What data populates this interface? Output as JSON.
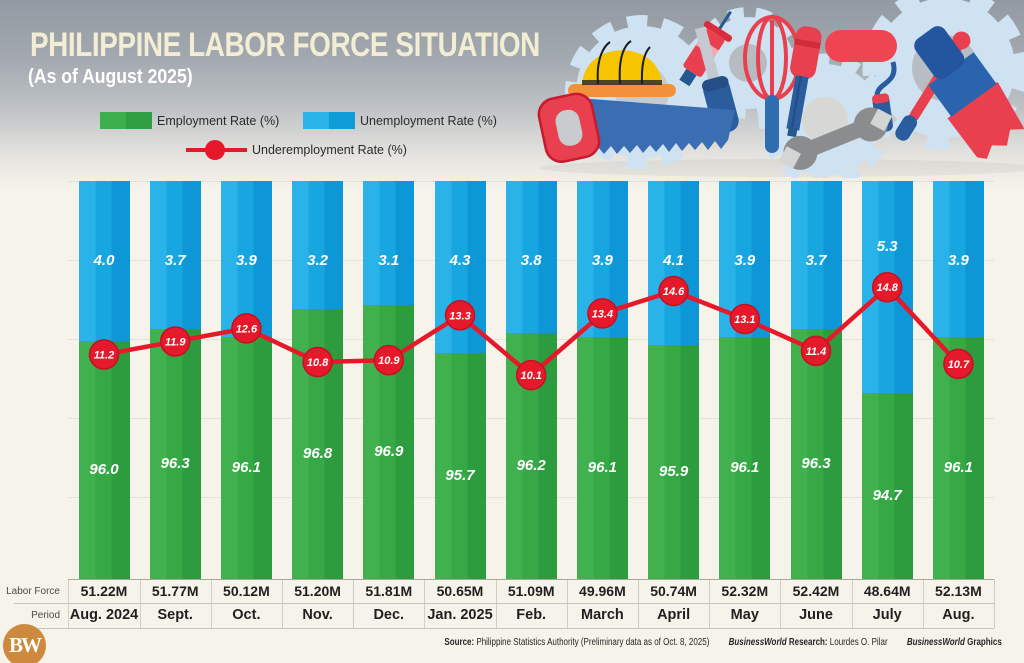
{
  "header": {
    "title": "PHILIPPINE LABOR FORCE SITUATION",
    "subtitle": "(As of August 2025)"
  },
  "legend": {
    "employment": "Employment Rate (%)",
    "unemployment": "Unemployment Rate (%)",
    "underemployment": "Underemployment Rate (%)"
  },
  "table": {
    "labor_force_label": "Labor Force",
    "period_label": "Period"
  },
  "footer": {
    "source_label": "Source:",
    "source_text": " Philippine Statistics Authority (Preliminary data as of Oct. 8, 2025)",
    "research_brand": "BusinessWorld",
    "research_label": " Research:",
    "research_text": " Lourdes O. Pilar",
    "graphics_brand": "BusinessWorld",
    "graphics_label": " Graphics"
  },
  "logo_text": "BW",
  "colors": {
    "employment_green": "#36a846",
    "unemployment_blue": "#18a6e1",
    "underemployment_red": "#e6192b",
    "background_cream": "#f5f3ea",
    "title_cream": "#f2edd3",
    "logo_orange": "#cd8a3e",
    "gridline": "#e4e2d6"
  },
  "chart_data": {
    "type": "bar",
    "stacked": true,
    "grid": "horizontal",
    "legend_position": "top",
    "ylim": [
      0,
      100
    ],
    "categories": [
      "Aug. 2024",
      "Sept.",
      "Oct.",
      "Nov.",
      "Dec.",
      "Jan. 2025",
      "Feb.",
      "March",
      "April",
      "May",
      "June",
      "July",
      "Aug."
    ],
    "series": [
      {
        "name": "Employment Rate (%)",
        "type": "bar",
        "values": [
          96.0,
          96.3,
          96.1,
          96.8,
          96.9,
          95.7,
          96.2,
          96.1,
          95.9,
          96.1,
          96.3,
          94.7,
          96.1
        ]
      },
      {
        "name": "Unemployment Rate (%)",
        "type": "bar",
        "values": [
          4.0,
          3.7,
          3.9,
          3.2,
          3.1,
          4.3,
          3.8,
          3.9,
          4.1,
          3.9,
          3.7,
          5.3,
          3.9
        ]
      },
      {
        "name": "Underemployment Rate (%)",
        "type": "line",
        "values": [
          11.2,
          11.9,
          12.6,
          10.8,
          10.9,
          13.3,
          10.1,
          13.4,
          14.6,
          13.1,
          11.4,
          14.8,
          10.7
        ]
      }
    ],
    "labor_force": [
      "51.22M",
      "51.77M",
      "50.12M",
      "51.20M",
      "51.81M",
      "50.65M",
      "51.09M",
      "49.96M",
      "50.74M",
      "52.32M",
      "52.42M",
      "48.64M",
      "52.13M"
    ]
  }
}
